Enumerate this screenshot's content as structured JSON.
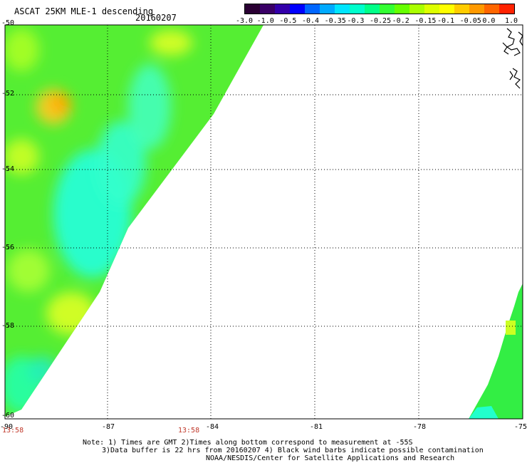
{
  "header": {
    "title": "ASCAT 25KM MLE-1 descending",
    "date": "20160207"
  },
  "colorbar": {
    "colors": [
      "#2a0033",
      "#3a0066",
      "#3300aa",
      "#0000ff",
      "#0066ff",
      "#00aaff",
      "#00e5ff",
      "#00ffcc",
      "#00ff88",
      "#33ff33",
      "#66ff00",
      "#aaff00",
      "#ddff00",
      "#ffff00",
      "#ffcc00",
      "#ff9900",
      "#ff6600",
      "#ff2200"
    ],
    "labels": [
      "-3.0",
      "-1.0",
      "-0.5",
      "-0.4",
      "-0.35",
      "-0.3",
      "-0.25",
      "-0.2",
      "-0.15",
      "-0.1",
      "-0.05",
      "0.0",
      "1.0"
    ]
  },
  "axes": {
    "lat_labels": [
      "-50",
      "-52",
      "-54",
      "-56",
      "-58",
      "-60"
    ],
    "lon_labels": [
      "-90",
      "-87",
      "-84",
      "-81",
      "-78",
      "-75"
    ],
    "time_labels": [
      "13:58",
      "13:58"
    ]
  },
  "note": {
    "line1": "Note: 1) Times are GMT 2)Times along bottom correspond to measurement at -55S",
    "line2": "3)Data buffer is 22 hrs from 20160207 4) Black wind barbs indicate possible contamination",
    "line3": "NOAA/NESDIS/Center for Satellite Applications and Research"
  }
}
